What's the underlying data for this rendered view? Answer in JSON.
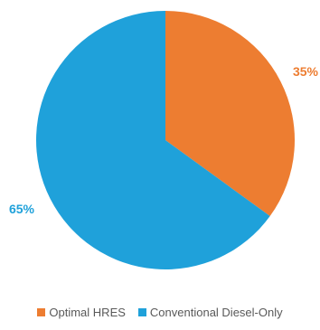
{
  "chart_data": {
    "type": "pie",
    "title": "",
    "legend_position": "bottom",
    "slices": [
      {
        "name": "Optimal HRES",
        "value": 35,
        "label": "35%",
        "color": "#ED7D31"
      },
      {
        "name": "Conventional Diesel-Only",
        "value": 65,
        "label": "65%",
        "color": "#1FA1DA"
      }
    ]
  }
}
